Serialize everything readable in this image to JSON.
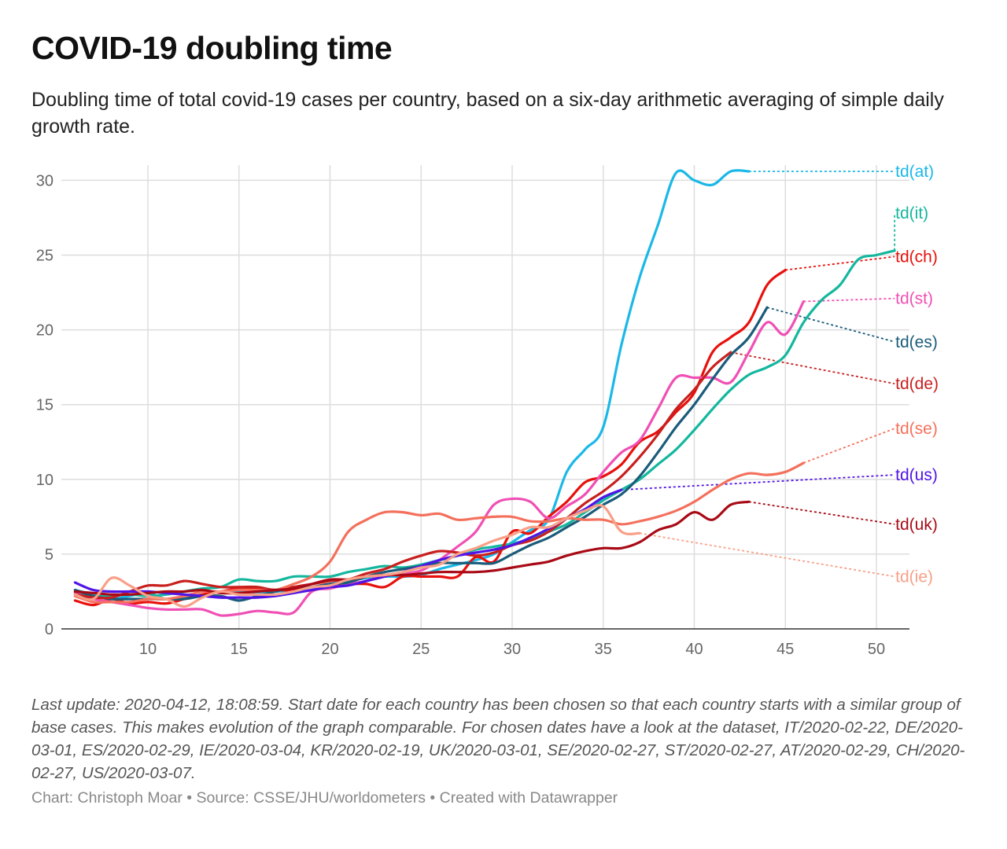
{
  "title": "COVID-19 doubling time",
  "subtitle": "Doubling time of total covid-19 cases per country, based on a six-day arithmetic averaging of simple daily growth rate.",
  "notes": "Last update: 2020-04-12, 18:08:59. Start date for each country has been chosen so that each country starts with a similar group of base cases. This makes evolution of the graph comparable. For chosen dates have a look at the dataset, IT/2020-02-22, DE/2020-03-01, ES/2020-02-29, IE/2020-03-04, KR/2020-02-19, UK/2020-03-01, SE/2020-02-27, ST/2020-02-27, AT/2020-02-29, CH/2020-02-27, US/2020-03-07.",
  "byline": "Chart: Christoph Moar • Source: CSSE/JHU/worldometers • Created with Datawrapper",
  "chart_data": {
    "type": "line",
    "title": "COVID-19 doubling time",
    "xlabel": "",
    "ylabel": "",
    "xlim": [
      5.5,
      51.8
    ],
    "ylim": [
      0,
      30.5
    ],
    "x_ticks": [
      10,
      15,
      20,
      25,
      30,
      35,
      40,
      45,
      50
    ],
    "y_ticks": [
      0,
      5,
      10,
      15,
      20,
      25,
      30
    ],
    "grid": true,
    "legend": "inline labels at right end of lines",
    "label_x": 51,
    "series": [
      {
        "name": "td(at)",
        "color": "#1ab8e8",
        "label_y": 30.6,
        "x": [
          6,
          7,
          8,
          9,
          10,
          11,
          12,
          13,
          14,
          15,
          16,
          17,
          18,
          19,
          20,
          21,
          22,
          23,
          24,
          25,
          26,
          27,
          28,
          29,
          30,
          31,
          32,
          33,
          34,
          35,
          36,
          37,
          38,
          39,
          40,
          41,
          42,
          43
        ],
        "y": [
          2.6,
          2.3,
          2.0,
          2.2,
          2.4,
          2.0,
          2.1,
          2.3,
          2.5,
          2.5,
          2.4,
          2.5,
          2.6,
          2.8,
          3.0,
          3.2,
          3.4,
          3.5,
          3.5,
          3.6,
          4.0,
          4.3,
          4.6,
          5.0,
          5.8,
          6.6,
          7.3,
          10.5,
          12.0,
          13.5,
          19.0,
          23.5,
          27.0,
          30.5,
          30.0,
          29.7,
          30.6,
          30.6
        ]
      },
      {
        "name": "td(it)",
        "color": "#14b79e",
        "label_y": 27.8,
        "x": [
          6,
          7,
          8,
          9,
          10,
          11,
          12,
          13,
          14,
          15,
          16,
          17,
          18,
          19,
          20,
          21,
          22,
          23,
          24,
          25,
          26,
          27,
          28,
          29,
          30,
          31,
          32,
          33,
          34,
          35,
          36,
          37,
          38,
          39,
          40,
          41,
          42,
          43,
          44,
          45,
          46,
          47,
          48,
          49,
          50,
          51
        ],
        "y": [
          2.5,
          2.2,
          2.2,
          2.3,
          2.2,
          2.3,
          2.5,
          2.7,
          2.8,
          3.3,
          3.2,
          3.2,
          3.5,
          3.5,
          3.5,
          3.8,
          4.0,
          4.2,
          4.1,
          4.3,
          4.6,
          4.9,
          5.3,
          5.5,
          5.7,
          6.0,
          6.5,
          7.0,
          7.8,
          8.6,
          9.3,
          10.0,
          11.0,
          12.0,
          13.3,
          14.7,
          16.0,
          17.0,
          17.5,
          18.3,
          20.5,
          22.0,
          23.0,
          24.7,
          25.0,
          25.3
        ]
      },
      {
        "name": "td(ch)",
        "color": "#e8100c",
        "label_y": 24.9,
        "x": [
          6,
          7,
          8,
          9,
          10,
          11,
          12,
          13,
          14,
          15,
          16,
          17,
          18,
          19,
          20,
          21,
          22,
          23,
          24,
          25,
          26,
          27,
          28,
          29,
          30,
          31,
          32,
          33,
          34,
          35,
          36,
          37,
          38,
          39,
          40,
          41,
          42,
          43,
          44,
          45
        ],
        "y": [
          1.9,
          1.6,
          2.0,
          1.7,
          1.8,
          1.7,
          2.0,
          2.3,
          2.5,
          2.7,
          2.7,
          2.6,
          2.6,
          2.8,
          3.0,
          3.0,
          3.0,
          2.8,
          3.5,
          3.5,
          3.5,
          3.5,
          4.8,
          4.5,
          6.5,
          6.4,
          7.5,
          8.5,
          9.8,
          10.2,
          11.0,
          12.5,
          13.2,
          14.5,
          15.8,
          18.5,
          19.5,
          20.5,
          23.0,
          24.0
        ]
      },
      {
        "name": "td(st)",
        "color": "#f050b4",
        "label_y": 22.1,
        "x": [
          6,
          7,
          8,
          9,
          10,
          11,
          12,
          13,
          14,
          15,
          16,
          17,
          18,
          19,
          20,
          21,
          22,
          23,
          24,
          25,
          26,
          27,
          28,
          29,
          30,
          31,
          32,
          33,
          34,
          35,
          36,
          37,
          38,
          39,
          40,
          41,
          42,
          43,
          44,
          45,
          46
        ],
        "y": [
          2.4,
          2.0,
          1.8,
          1.6,
          1.4,
          1.3,
          1.3,
          1.3,
          0.9,
          1.0,
          1.2,
          1.1,
          1.1,
          2.5,
          2.7,
          3.0,
          3.2,
          3.6,
          3.7,
          3.9,
          4.6,
          5.5,
          6.5,
          8.3,
          8.7,
          8.5,
          7.4,
          8.2,
          9.0,
          10.5,
          11.8,
          12.6,
          14.7,
          16.8,
          16.8,
          16.8,
          16.5,
          18.5,
          20.5,
          19.7,
          21.9
        ]
      },
      {
        "name": "td(es)",
        "color": "#1a5c7a",
        "label_y": 19.2,
        "x": [
          6,
          7,
          8,
          9,
          10,
          11,
          12,
          13,
          14,
          15,
          16,
          17,
          18,
          19,
          20,
          21,
          22,
          23,
          24,
          25,
          26,
          27,
          28,
          29,
          30,
          31,
          32,
          33,
          34,
          35,
          36,
          37,
          38,
          39,
          40,
          41,
          42,
          43,
          44
        ],
        "y": [
          2.6,
          2.2,
          2.0,
          2.0,
          2.0,
          2.0,
          2.0,
          2.2,
          2.2,
          1.9,
          2.2,
          2.5,
          2.8,
          2.8,
          3.0,
          3.1,
          3.5,
          3.8,
          4.0,
          4.2,
          4.4,
          4.4,
          4.4,
          4.4,
          5.0,
          5.6,
          6.1,
          6.8,
          7.5,
          8.3,
          9.0,
          10.2,
          11.8,
          13.5,
          15.0,
          16.7,
          18.3,
          19.5,
          21.5
        ]
      },
      {
        "name": "td(de)",
        "color": "#c8201e",
        "label_y": 16.4,
        "x": [
          6,
          7,
          8,
          9,
          10,
          11,
          12,
          13,
          14,
          15,
          16,
          17,
          18,
          19,
          20,
          21,
          22,
          23,
          24,
          25,
          26,
          27,
          28,
          29,
          30,
          31,
          32,
          33,
          34,
          35,
          36,
          37,
          38,
          39,
          40,
          41,
          42
        ],
        "y": [
          2.3,
          2.1,
          2.1,
          2.5,
          2.9,
          2.9,
          3.2,
          3.0,
          2.8,
          2.8,
          2.8,
          2.6,
          2.8,
          3.0,
          3.2,
          3.3,
          3.7,
          4.0,
          4.5,
          4.9,
          5.2,
          5.1,
          4.9,
          5.1,
          5.6,
          5.9,
          6.5,
          7.4,
          8.4,
          9.2,
          10.2,
          11.5,
          13.0,
          14.7,
          16.0,
          17.5,
          18.5
        ]
      },
      {
        "name": "td(se)",
        "color": "#f4705c",
        "label_y": 13.4,
        "x": [
          6,
          7,
          8,
          9,
          10,
          11,
          12,
          13,
          14,
          15,
          16,
          17,
          18,
          19,
          20,
          21,
          22,
          23,
          24,
          25,
          26,
          27,
          28,
          29,
          30,
          31,
          32,
          33,
          34,
          35,
          36,
          37,
          38,
          39,
          40,
          41,
          42,
          43,
          44,
          45,
          46
        ],
        "y": [
          2.2,
          1.8,
          1.8,
          1.8,
          2.0,
          2.0,
          2.2,
          2.5,
          2.5,
          2.6,
          2.6,
          2.6,
          3.0,
          3.5,
          4.5,
          6.5,
          7.3,
          7.8,
          7.8,
          7.6,
          7.7,
          7.3,
          7.4,
          7.5,
          7.5,
          7.2,
          7.2,
          7.4,
          7.3,
          7.3,
          7.0,
          7.2,
          7.5,
          7.9,
          8.5,
          9.3,
          10.0,
          10.4,
          10.3,
          10.5,
          11.1
        ]
      },
      {
        "name": "td(us)",
        "color": "#5014e6",
        "label_y": 10.3,
        "x": [
          6,
          7,
          8,
          9,
          10,
          11,
          12,
          13,
          14,
          15,
          16,
          17,
          18,
          19,
          20,
          21,
          22,
          23,
          24,
          25,
          26,
          27,
          28,
          29,
          30,
          31,
          32,
          33,
          34,
          35,
          36
        ],
        "y": [
          3.1,
          2.6,
          2.5,
          2.5,
          2.5,
          2.4,
          2.3,
          2.2,
          2.1,
          2.1,
          2.1,
          2.2,
          2.4,
          2.6,
          2.8,
          2.9,
          3.2,
          3.5,
          3.8,
          4.2,
          4.6,
          4.9,
          5.1,
          5.3,
          5.6,
          6.1,
          6.7,
          7.4,
          8.0,
          8.8,
          9.3
        ]
      },
      {
        "name": "td(uk)",
        "color": "#a80a16",
        "label_y": 7.0,
        "x": [
          6,
          7,
          8,
          9,
          10,
          11,
          12,
          13,
          14,
          15,
          16,
          17,
          18,
          19,
          20,
          21,
          22,
          23,
          24,
          25,
          26,
          27,
          28,
          29,
          30,
          31,
          32,
          33,
          34,
          35,
          36,
          37,
          38,
          39,
          40,
          41,
          42,
          43
        ],
        "y": [
          2.5,
          2.4,
          2.3,
          2.3,
          2.4,
          2.5,
          2.5,
          2.6,
          2.4,
          2.4,
          2.5,
          2.6,
          2.7,
          3.0,
          3.3,
          3.3,
          3.5,
          3.6,
          3.6,
          3.7,
          3.8,
          3.8,
          3.8,
          3.9,
          4.1,
          4.3,
          4.5,
          4.9,
          5.2,
          5.4,
          5.4,
          5.8,
          6.6,
          7.0,
          7.8,
          7.3,
          8.3,
          8.5
        ]
      },
      {
        "name": "td(ie)",
        "color": "#f8a088",
        "label_y": 3.5,
        "x": [
          6,
          7,
          8,
          9,
          10,
          11,
          12,
          13,
          14,
          15,
          16,
          17,
          18,
          19,
          20,
          21,
          22,
          23,
          24,
          25,
          26,
          27,
          28,
          29,
          30,
          31,
          32,
          33,
          34,
          35,
          36,
          37
        ],
        "y": [
          2.3,
          2.0,
          3.4,
          2.9,
          2.2,
          2.0,
          1.5,
          2.1,
          2.5,
          2.3,
          2.3,
          2.3,
          2.5,
          2.8,
          2.9,
          3.3,
          3.5,
          3.6,
          3.8,
          4.1,
          4.3,
          5.0,
          5.4,
          5.9,
          6.3,
          6.8,
          6.8,
          7.4,
          7.9,
          8.2,
          6.5,
          6.4
        ]
      }
    ]
  }
}
